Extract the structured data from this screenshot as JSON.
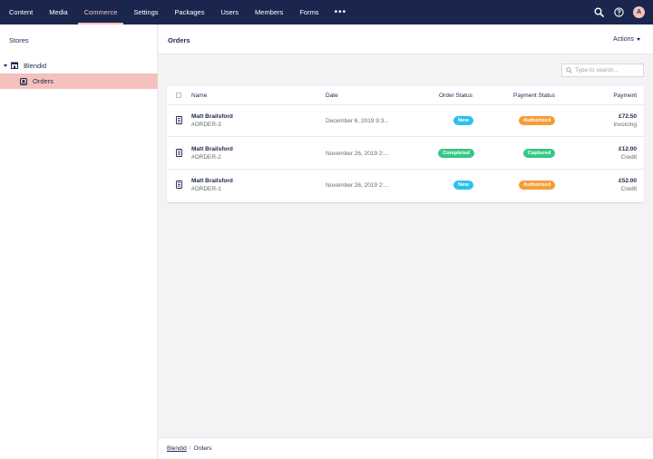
{
  "nav": {
    "items": [
      {
        "label": "Content"
      },
      {
        "label": "Media"
      },
      {
        "label": "Commerce",
        "active": true
      },
      {
        "label": "Settings"
      },
      {
        "label": "Packages"
      },
      {
        "label": "Users"
      },
      {
        "label": "Members"
      },
      {
        "label": "Forms"
      }
    ],
    "more": "•••",
    "avatar_initial": "A"
  },
  "sidebar": {
    "title": "Stores",
    "store": "Blendid",
    "child": "Orders"
  },
  "main": {
    "title": "Orders",
    "actions": "Actions",
    "search_placeholder": "Type to search...",
    "columns": {
      "name": "Name",
      "date": "Date",
      "order_status": "Order Status",
      "payment_status": "Payment Status",
      "payment": "Payment"
    },
    "orders": [
      {
        "customer": "Matt Brailsford",
        "number": "#ORDER-3",
        "date": "December 6, 2019 9:3...",
        "order_status": "New",
        "order_status_color": "#2bc0f0",
        "payment_status": "Authorized",
        "payment_status_color": "#f79c37",
        "amount": "£72.50",
        "payment_sub": "Invoicing"
      },
      {
        "customer": "Matt Brailsford",
        "number": "#ORDER-2",
        "date": "November 26, 2019 2:...",
        "order_status": "Completed",
        "order_status_color": "#35c786",
        "payment_status": "Captured",
        "payment_status_color": "#35c786",
        "amount": "£12.00",
        "payment_sub": "Credit"
      },
      {
        "customer": "Matt Brailsford",
        "number": "#ORDER-1",
        "date": "November 26, 2019 2:...",
        "order_status": "New",
        "order_status_color": "#2bc0f0",
        "payment_status": "Authorized",
        "payment_status_color": "#f79c37",
        "amount": "£52.00",
        "payment_sub": "Credit"
      }
    ]
  },
  "breadcrumb": {
    "root": "Blendid",
    "separator": "/",
    "current": "Orders"
  },
  "colors": {
    "nav_bg": "#1b264f",
    "accent": "#f5c1bc"
  }
}
